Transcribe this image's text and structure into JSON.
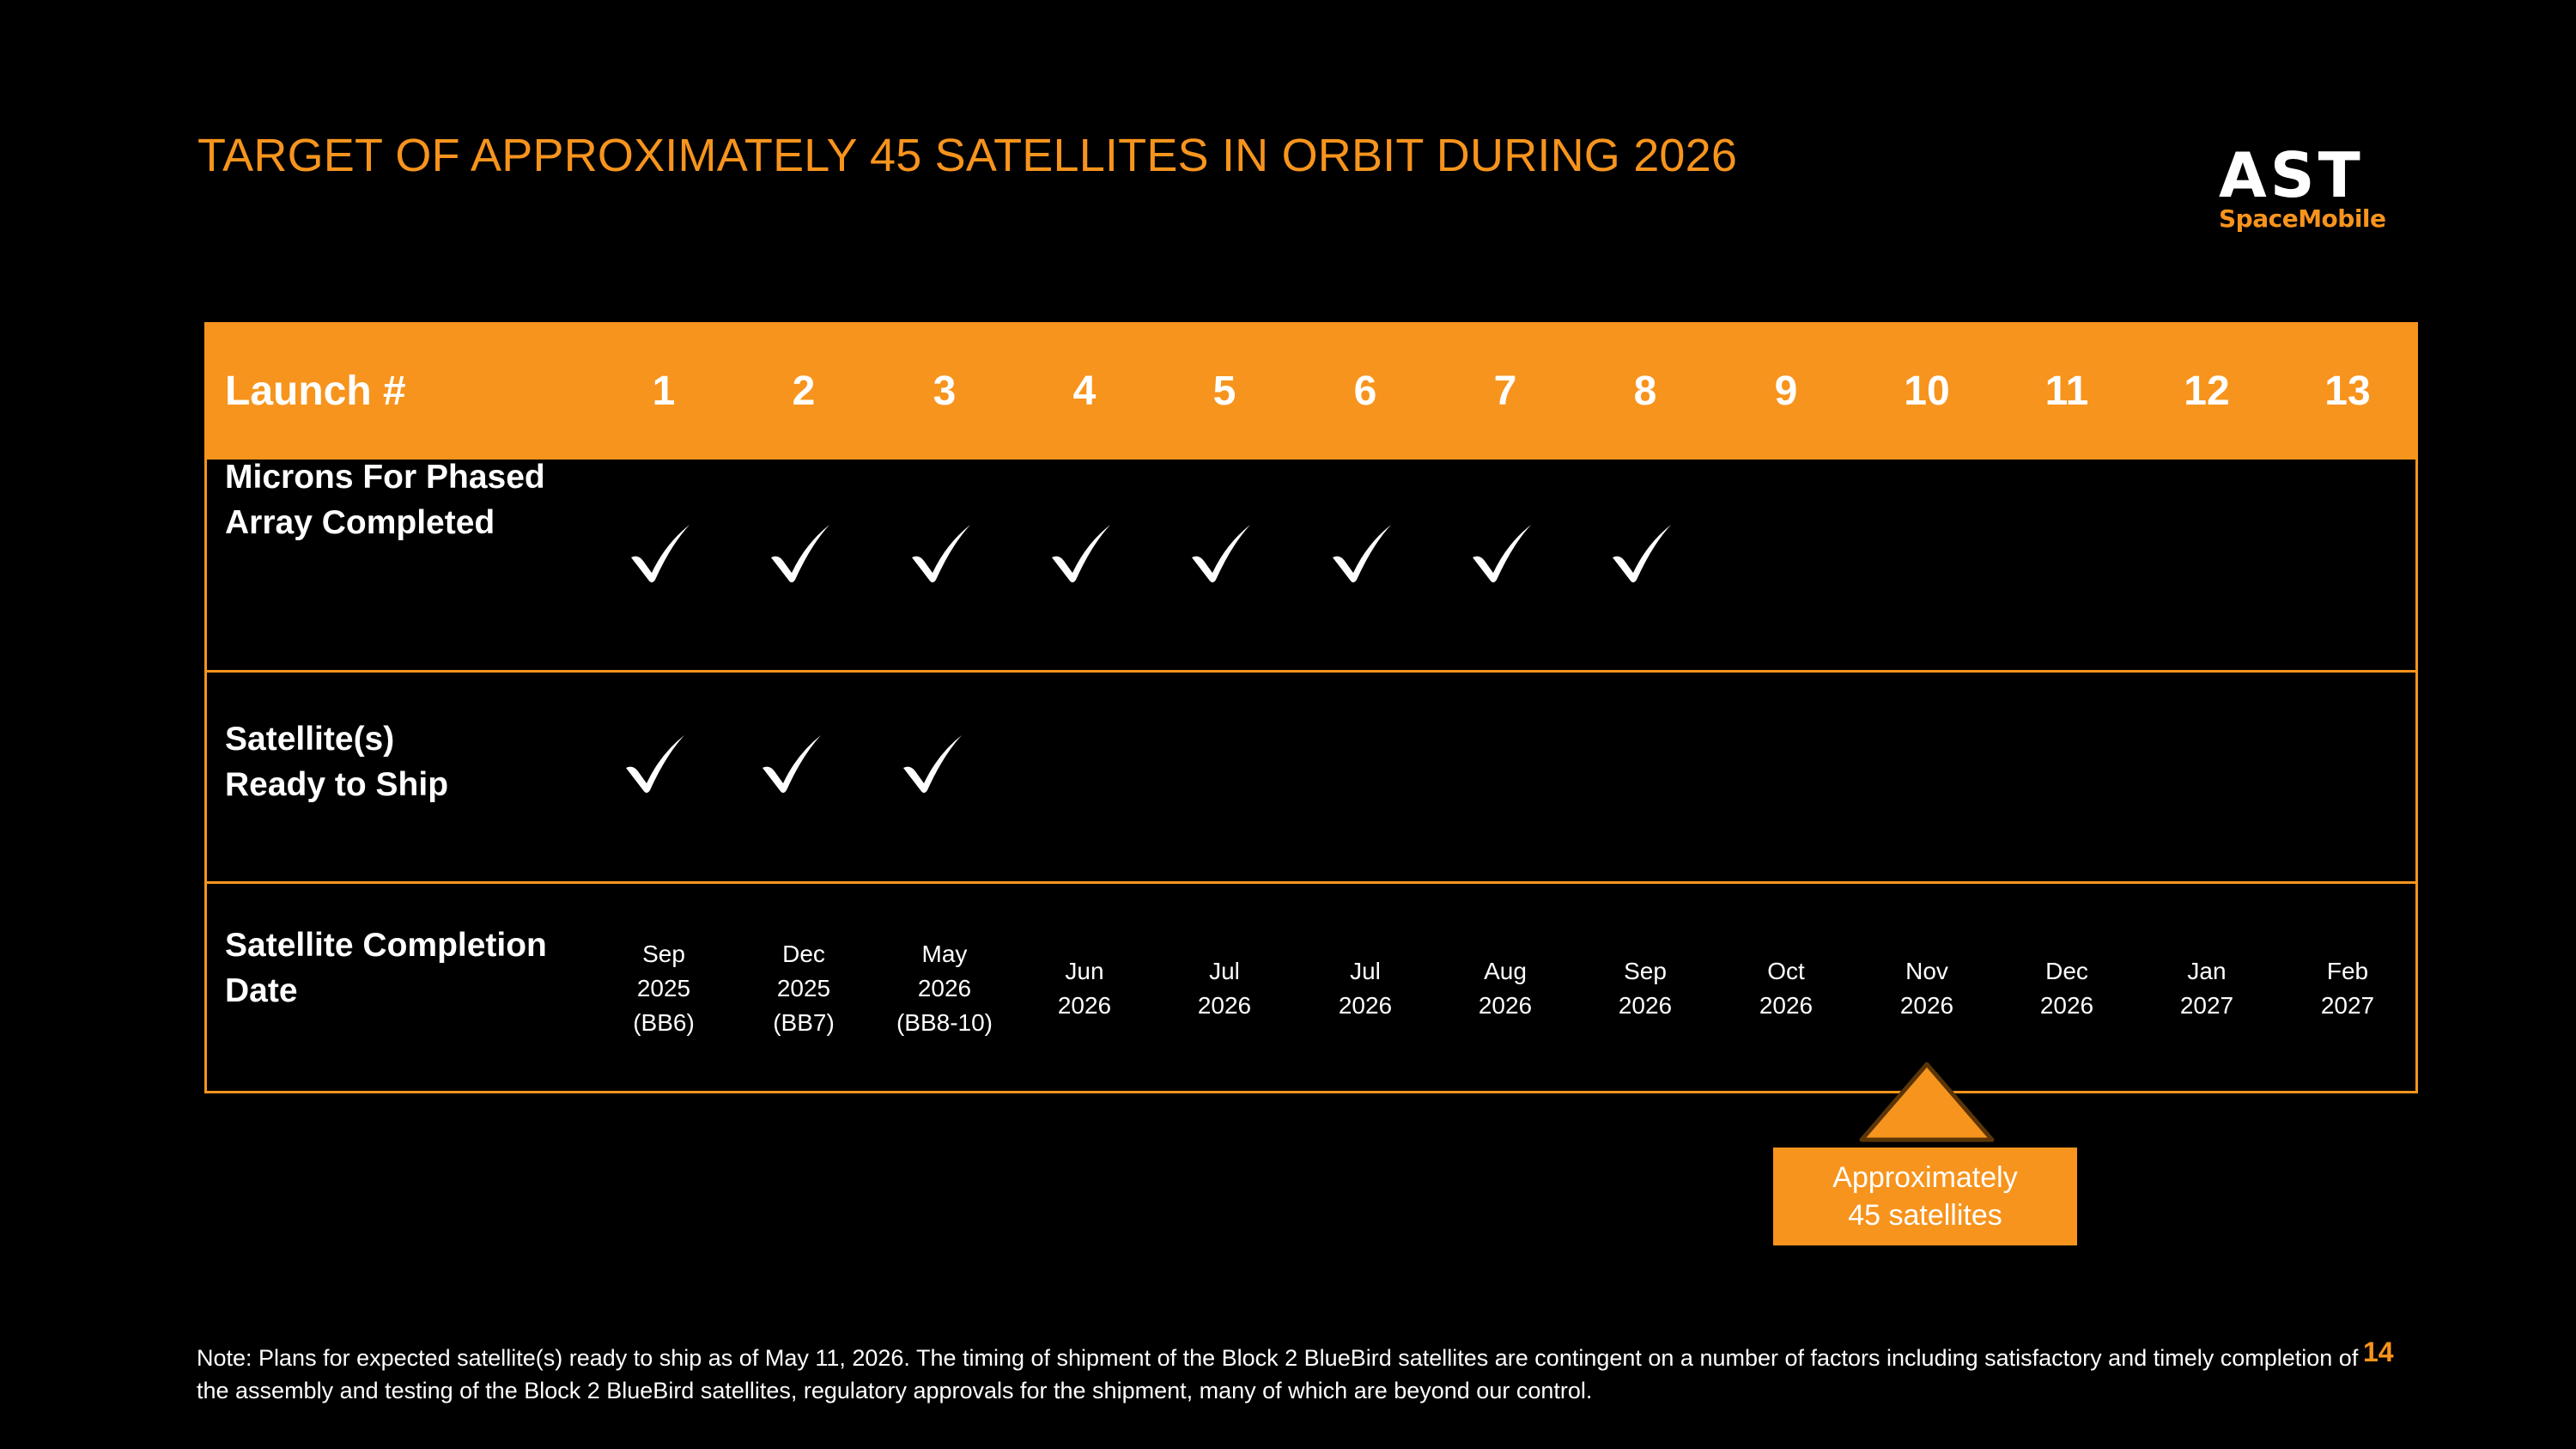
{
  "title": "TARGET OF APPROXIMATELY 45 SATELLITES IN ORBIT DURING 2026",
  "logo": {
    "main": "AST",
    "sub": "SpaceMobile"
  },
  "colors": {
    "accent": "#f7941d",
    "background": "#000000",
    "text": "#ffffff"
  },
  "table": {
    "header_label": "Launch #",
    "launches": [
      "1",
      "2",
      "3",
      "4",
      "5",
      "6",
      "7",
      "8",
      "9",
      "10",
      "11",
      "12",
      "13"
    ],
    "rows": [
      {
        "label_lines": [
          "Microns For Phased",
          "Array Completed"
        ],
        "checked": [
          true,
          true,
          true,
          true,
          true,
          true,
          true,
          true,
          false,
          false,
          false,
          false,
          false
        ]
      },
      {
        "label_lines": [
          "Satellite(s)",
          "Ready to Ship"
        ],
        "checked": [
          true,
          true,
          true,
          false,
          false,
          false,
          false,
          false,
          false,
          false,
          false,
          false,
          false
        ]
      },
      {
        "label_lines": [
          "Satellite Completion",
          "Date"
        ]
      }
    ],
    "completion_dates": [
      [
        "Sep",
        "2025",
        "(BB6)"
      ],
      [
        "Dec",
        "2025",
        "(BB7)"
      ],
      [
        "May",
        "2026",
        "(BB8-10)"
      ],
      [
        "Jun",
        "2026"
      ],
      [
        "Jul",
        "2026"
      ],
      [
        "Jul",
        "2026"
      ],
      [
        "Aug",
        "2026"
      ],
      [
        "Sep",
        "2026"
      ],
      [
        "Oct",
        "2026"
      ],
      [
        "Nov",
        "2026"
      ],
      [
        "Dec",
        "2026"
      ],
      [
        "Jan",
        "2027"
      ],
      [
        "Feb",
        "2027"
      ]
    ],
    "check_icon": "checkmark-icon"
  },
  "callout": {
    "lines": [
      "Approximately",
      "45 satellites"
    ],
    "icon": "triangle-pointer-icon"
  },
  "note": "Note: Plans for expected satellite(s) ready to ship as of May 11, 2026. The timing of shipment of the Block 2 BlueBird satellites are contingent on a number of factors including satisfactory and timely completion of the assembly and testing of the Block 2 BlueBird satellites, regulatory approvals for the shipment, many of which are beyond our control.",
  "page_number": "14"
}
